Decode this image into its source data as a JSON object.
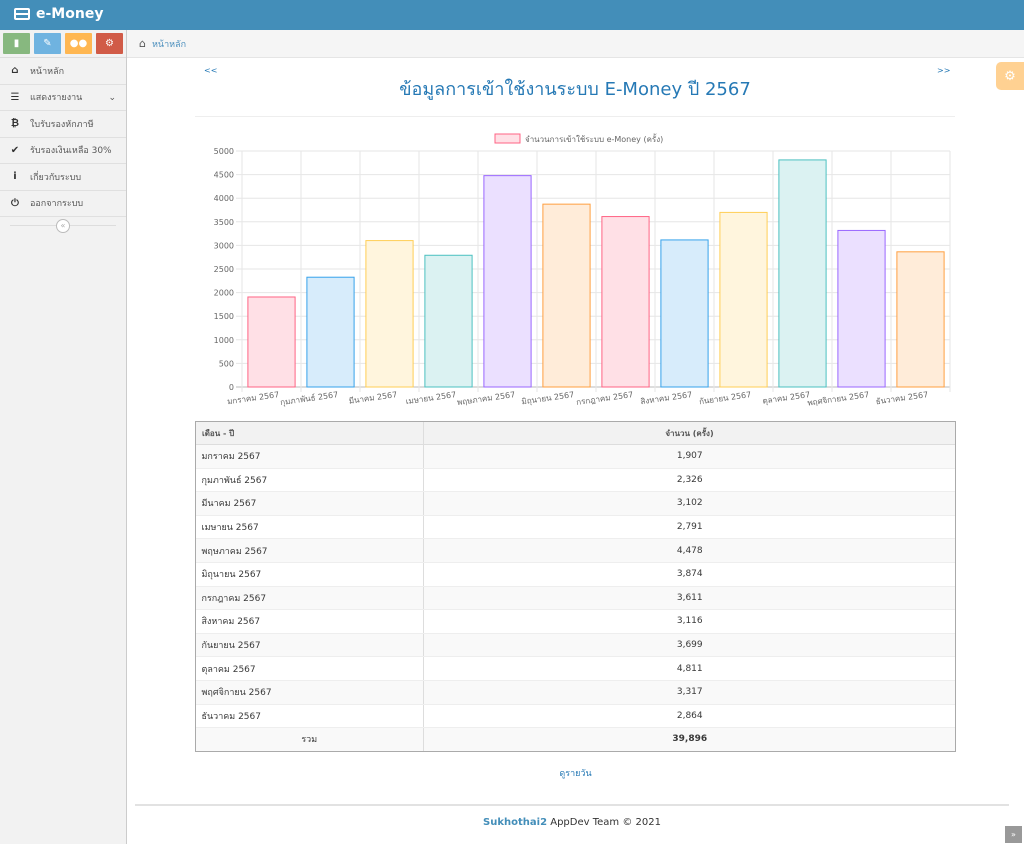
{
  "app": {
    "title": "e-Money"
  },
  "shortcuts": [
    {
      "name": "chart-shortcut",
      "color": "#87b87f",
      "icon": "signal-icon"
    },
    {
      "name": "edit-shortcut",
      "color": "#6fb3e0",
      "icon": "pencil-icon"
    },
    {
      "name": "users-shortcut",
      "color": "#ffb752",
      "icon": "users-icon"
    },
    {
      "name": "settings-shortcut",
      "color": "#d15b47",
      "icon": "cogs-icon"
    }
  ],
  "sidebar": {
    "items": [
      {
        "label": "หน้าหลัก",
        "icon": "home-icon"
      },
      {
        "label": "แสดงรายงาน",
        "icon": "list-icon"
      },
      {
        "label": "ใบรับรองหักภาษี",
        "icon": "bitcoin-icon"
      },
      {
        "label": "รับรองเงินเหลือ 30%",
        "icon": "check-icon"
      },
      {
        "label": "เกี่ยวกับระบบ",
        "icon": "info-icon"
      },
      {
        "label": "ออกจากระบบ",
        "icon": "power-icon"
      }
    ]
  },
  "breadcrumb": {
    "home": "หน้าหลัก"
  },
  "header": {
    "prev": "<<",
    "next": ">>",
    "title": "ข้อมูลการเข้าใช้งานระบบ E-Money ปี 2567"
  },
  "chart_data": {
    "type": "bar",
    "legend": "จำนวนการเข้าใช้ระบบ e-Money (ครั้ง)",
    "legend_position": "top",
    "categories": [
      "มกราคม 2567",
      "กุมภาพันธ์ 2567",
      "มีนาคม 2567",
      "เมษายน 2567",
      "พฤษภาคม 2567",
      "มิถุนายน 2567",
      "กรกฎาคม 2567",
      "สิงหาคม 2567",
      "กันยายน 2567",
      "ตุลาคม 2567",
      "พฤศจิกายน 2567",
      "ธันวาคม 2567"
    ],
    "values": [
      1907,
      2326,
      3102,
      2791,
      4478,
      3874,
      3611,
      3116,
      3699,
      4811,
      3317,
      2864
    ],
    "ylim": [
      0,
      5000
    ],
    "yticks": [
      0,
      500,
      1000,
      1500,
      2000,
      2500,
      3000,
      3500,
      4000,
      4500,
      5000
    ],
    "grid": true,
    "colors": [
      {
        "fill": "#ffe0e6",
        "stroke": "#ff6384"
      },
      {
        "fill": "#d7ecfb",
        "stroke": "#36a2eb"
      },
      {
        "fill": "#fff5dd",
        "stroke": "#ffce56"
      },
      {
        "fill": "#dbf2f2",
        "stroke": "#4bc0c0"
      },
      {
        "fill": "#ebe0ff",
        "stroke": "#9966ff"
      },
      {
        "fill": "#ffecd9",
        "stroke": "#ff9f40"
      }
    ]
  },
  "table": {
    "headers": [
      "เดือน - ปี",
      "จำนวน (ครั้ง)"
    ],
    "rows": [
      {
        "month": "มกราคม 2567",
        "count": "1,907"
      },
      {
        "month": "กุมภาพันธ์ 2567",
        "count": "2,326"
      },
      {
        "month": "มีนาคม 2567",
        "count": "3,102"
      },
      {
        "month": "เมษายน 2567",
        "count": "2,791"
      },
      {
        "month": "พฤษภาคม 2567",
        "count": "4,478"
      },
      {
        "month": "มิถุนายน 2567",
        "count": "3,874"
      },
      {
        "month": "กรกฎาคม 2567",
        "count": "3,611"
      },
      {
        "month": "สิงหาคม 2567",
        "count": "3,116"
      },
      {
        "month": "กันยายน 2567",
        "count": "3,699"
      },
      {
        "month": "ตุลาคม 2567",
        "count": "4,811"
      },
      {
        "month": "พฤศจิกายน 2567",
        "count": "3,317"
      },
      {
        "month": "ธันวาคม 2567",
        "count": "2,864"
      }
    ],
    "total_label": "รวม",
    "total_value": "39,896"
  },
  "links": {
    "daily": "ดูรายวัน"
  },
  "footer": {
    "team": "Sukhothai2",
    "rest": " AppDev Team © 2021"
  }
}
